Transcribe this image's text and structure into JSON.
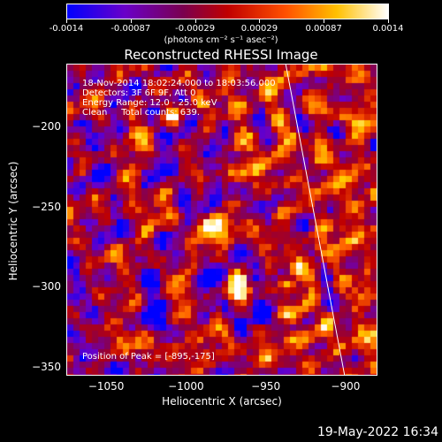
{
  "colorbar": {
    "tick_labels": [
      "-0.0014",
      "-0.00087",
      "-0.00029",
      "0.00029",
      "0.00087",
      "0.0014"
    ],
    "units": "(photons cm⁻² s⁻¹ asec⁻²)",
    "colors": [
      "#0000ff",
      "#6a00c8",
      "#8a0048",
      "#c00000",
      "#ff6000",
      "#ffd000",
      "#ffffff"
    ]
  },
  "title": "Reconstructed RHESSI Image",
  "info": {
    "line1": "18-Nov-2014 18:02:24.000 to 18:03:56.000",
    "line2": "Detectors: 3F 6F 9F, Att 0",
    "line3": "Energy Range: 12.0 - 25.0 keV",
    "line4": "Clean     Total counts: 639.",
    "peak": "Position of Peak = [-895,-175]"
  },
  "axes": {
    "xlabel": "Heliocentric X (arcsec)",
    "ylabel": "Heliocentric Y (arcsec)",
    "xticks": [
      {
        "value": -1050,
        "label": "−1050"
      },
      {
        "value": -1000,
        "label": "−1000"
      },
      {
        "value": -950,
        "label": "−950"
      },
      {
        "value": -900,
        "label": "−900"
      }
    ],
    "yticks": [
      {
        "value": -200,
        "label": "−200"
      },
      {
        "value": -250,
        "label": "−250"
      },
      {
        "value": -300,
        "label": "−300"
      },
      {
        "value": -350,
        "label": "−350"
      }
    ],
    "xlim": [
      -1075,
      -880
    ],
    "ylim": [
      -355,
      -160
    ]
  },
  "limb_line": {
    "x_start": -938,
    "y_start": -160,
    "x_end": -901,
    "y_end": -355
  },
  "footer": "19-May-2022 16:34"
}
